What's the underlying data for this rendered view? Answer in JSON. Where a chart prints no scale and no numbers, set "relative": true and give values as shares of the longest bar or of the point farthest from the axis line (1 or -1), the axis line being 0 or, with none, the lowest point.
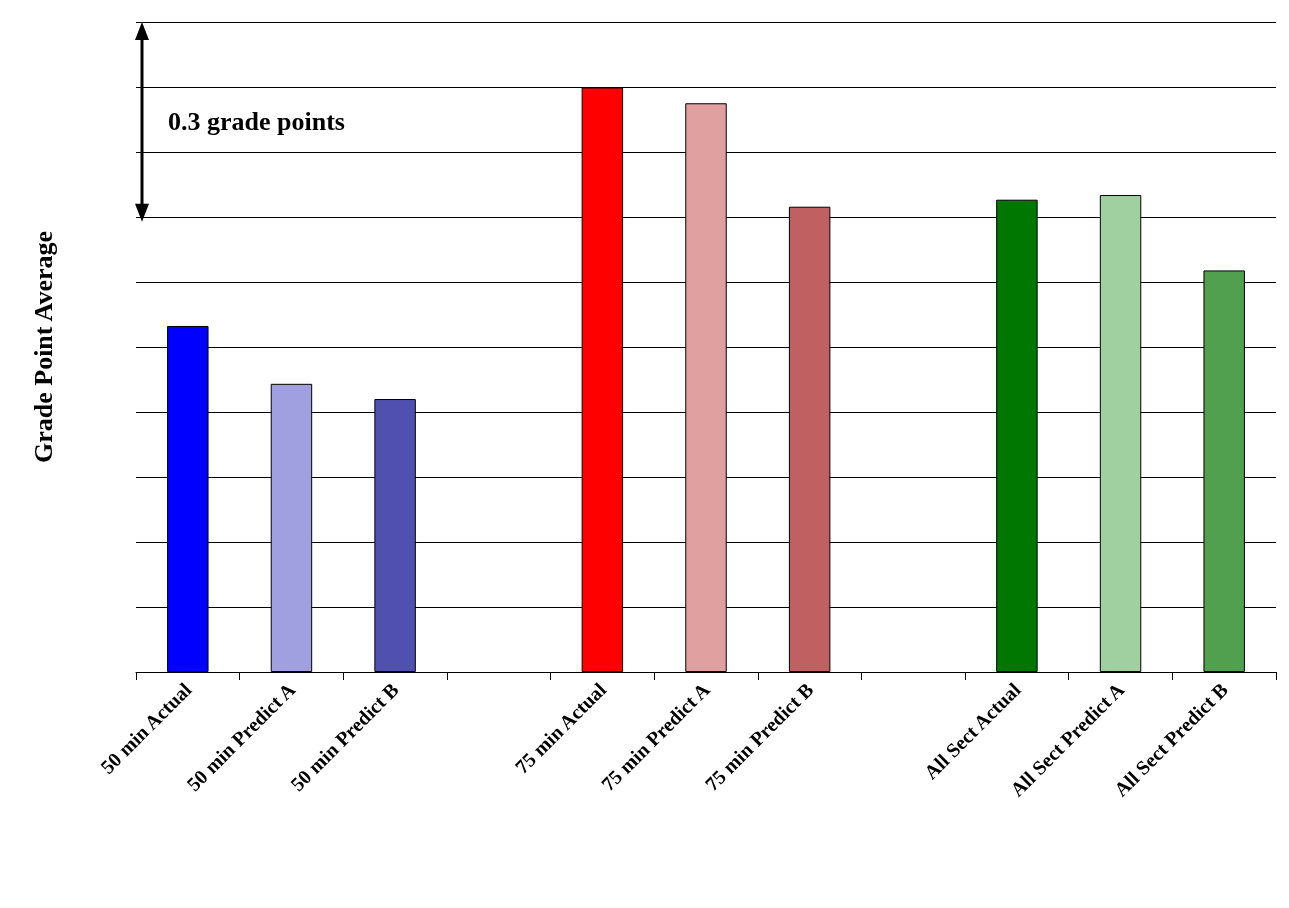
{
  "chart_data": {
    "type": "bar",
    "relative": true,
    "ylabel": "Grade Point Average",
    "categories": [
      "50 min Actual",
      "50 min Predict A",
      "50 min Predict B",
      null,
      "75 min Actual",
      "75 min Predict A",
      "75 min Predict B",
      null,
      "All Sect Actual",
      "All Sect Predict A",
      "All Sect Predict B"
    ],
    "values": [
      0.592,
      0.493,
      0.467,
      null,
      1,
      0.973,
      0.796,
      null,
      0.808,
      0.816,
      0.687
    ],
    "colors": [
      "#0000ff",
      "#a0a0e0",
      "#5050b0",
      "#ffffff",
      "#ff0000",
      "#e0a0a0",
      "#c06060",
      "#ffffff",
      "#007700",
      "#a0d0a0",
      "#50a050"
    ],
    "grid": "y",
    "annotations": [
      "0.3 grade points"
    ]
  }
}
